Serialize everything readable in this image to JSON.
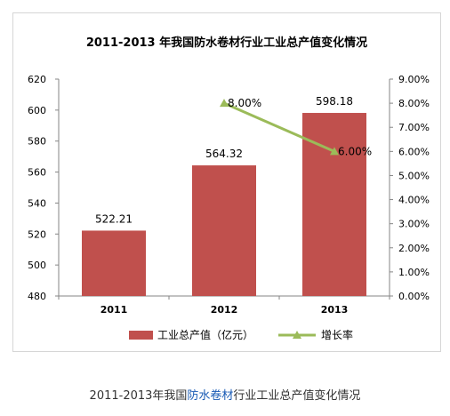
{
  "chart_data": {
    "type": "bar+line",
    "title": "2011-2013 年我国防水卷材行业工业总产值变化情况",
    "categories": [
      "2011",
      "2012",
      "2013"
    ],
    "bar_series": {
      "name": "工业总产值（亿元）",
      "values": [
        522.21,
        564.32,
        598.18
      ],
      "color": "#c0504d"
    },
    "line_series": {
      "name": "增长率",
      "values": [
        null,
        8.0,
        6.0
      ],
      "labels": [
        "",
        "8.00%",
        "6.00%"
      ],
      "color": "#9bbb59"
    },
    "y_left": {
      "min": 480,
      "max": 620,
      "step": 20,
      "ticks": [
        "480",
        "500",
        "520",
        "540",
        "560",
        "580",
        "600",
        "620"
      ]
    },
    "y_right": {
      "min": 0,
      "max": 9,
      "step": 1,
      "ticks": [
        "0.00%",
        "1.00%",
        "2.00%",
        "3.00%",
        "4.00%",
        "5.00%",
        "6.00%",
        "7.00%",
        "8.00%",
        "9.00%"
      ]
    },
    "bar_labels": [
      "522.21",
      "564.32",
      "598.18"
    ],
    "grid": false,
    "legend_position": "bottom"
  },
  "caption": {
    "pre": "2011-2013年我国",
    "link": "防水卷材",
    "post": "行业工业总产值变化情况"
  }
}
